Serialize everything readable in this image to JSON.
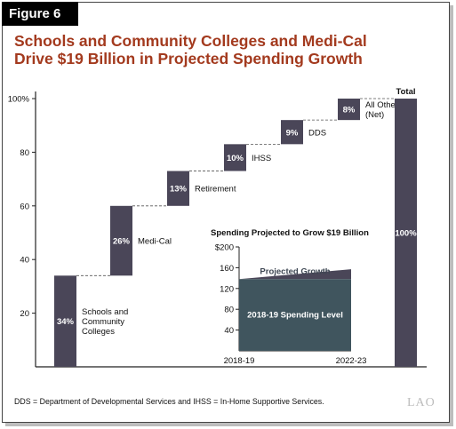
{
  "figure_label": "Figure 6",
  "title_lines": [
    "Schools and Community Colleges and Medi-Cal",
    "Drive $19 Billion in Projected Spending Growth"
  ],
  "footnote": "DDS = Department of Developmental Services and IHSS = In-Home Supportive Services.",
  "logo": "LAO",
  "colors": {
    "title": "#a33a1e",
    "bar": "#4a4658",
    "inset_base": "#40555e",
    "inset_growth": "#4a4658"
  },
  "chart_data": [
    {
      "type": "bar",
      "subtype": "waterfall",
      "categories": [
        "Schools and Community Colleges",
        "Medi-Cal",
        "Retirement",
        "IHSS",
        "DDS",
        "All Other (Net)",
        "Total"
      ],
      "label_lines": [
        [
          "Schools and",
          "Community",
          "Colleges"
        ],
        [
          "Medi-Cal"
        ],
        [
          "Retirement"
        ],
        [
          "IHSS"
        ],
        [
          "DDS"
        ],
        [
          "All Other",
          "(Net)"
        ],
        [
          "Total"
        ]
      ],
      "values": [
        34,
        26,
        13,
        10,
        9,
        8,
        100
      ],
      "value_labels": [
        "34%",
        "26%",
        "13%",
        "10%",
        "9%",
        "8%",
        "100%"
      ],
      "ylim": [
        0,
        100
      ],
      "yticks": [
        20,
        40,
        60,
        80,
        100
      ],
      "ytick_labels": [
        "20",
        "40",
        "60",
        "80",
        "100%"
      ],
      "grid": false
    },
    {
      "type": "area",
      "title": "Spending Projected to Grow $19 Billion",
      "x_labels": [
        "2018-19",
        "2022-23"
      ],
      "series": [
        {
          "name": "2018-19 Spending Level",
          "values": [
            138,
            138
          ]
        },
        {
          "name": "Projected Growth",
          "values": [
            138,
            157
          ]
        }
      ],
      "ylim": [
        0,
        200
      ],
      "yticks": [
        40,
        80,
        120,
        160,
        200
      ],
      "ytick_labels": [
        "40",
        "80",
        "120",
        "160",
        "$200"
      ]
    }
  ]
}
